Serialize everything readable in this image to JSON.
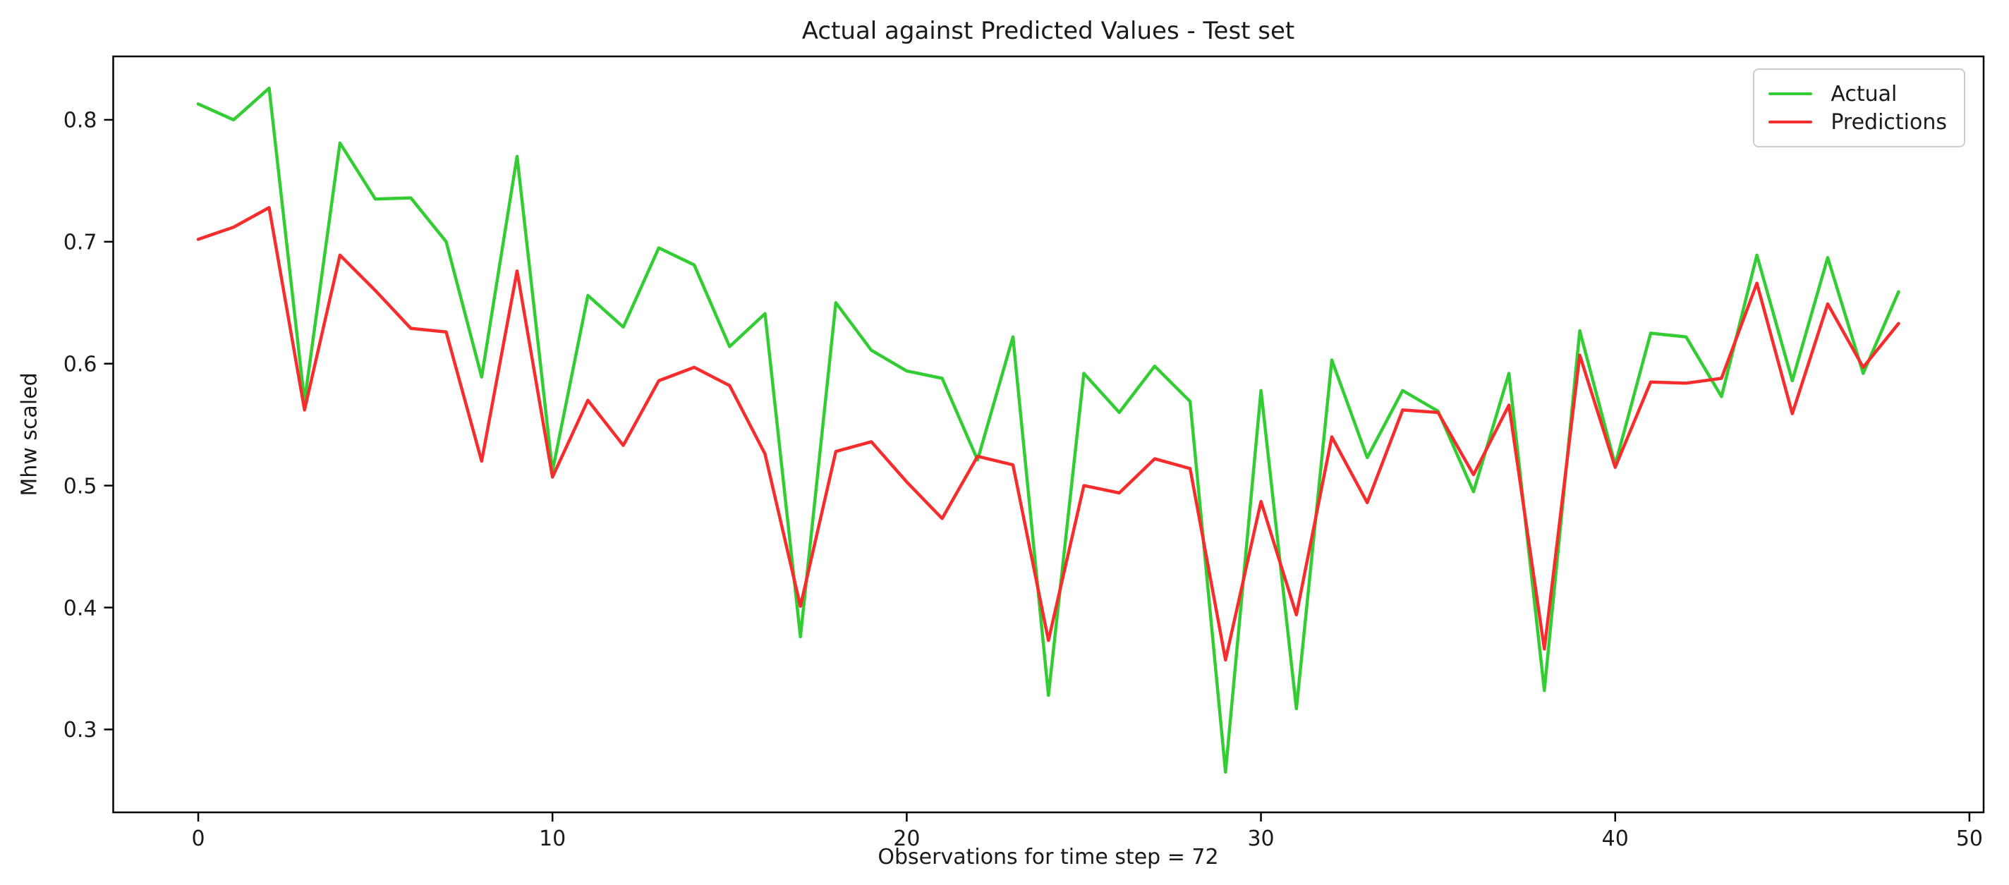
{
  "figure": {
    "title": "Actual against Predicted Values - Test set",
    "xlabel": "Observations for time step = 72",
    "ylabel": "Mhw scaled"
  },
  "legend": {
    "items": [
      {
        "label": "Actual",
        "color": "#32cd32"
      },
      {
        "label": "Predictions",
        "color": "#f72c2c"
      }
    ]
  },
  "chart_data": {
    "type": "line",
    "title": "Actual against Predicted Values - Test set",
    "xlabel": "Observations for time step = 72",
    "ylabel": "Mhw scaled",
    "grid": false,
    "legend_position": "upper right",
    "xlim": [
      -2.4,
      50.4
    ],
    "ylim": [
      0.232,
      0.852
    ],
    "x_ticks": [
      0,
      10,
      20,
      30,
      40,
      50
    ],
    "y_ticks": [
      0.3,
      0.4,
      0.5,
      0.6,
      0.7,
      0.8
    ],
    "x": [
      0,
      1,
      2,
      3,
      4,
      5,
      6,
      7,
      8,
      9,
      10,
      11,
      12,
      13,
      14,
      15,
      16,
      17,
      18,
      19,
      20,
      21,
      22,
      23,
      24,
      25,
      26,
      27,
      28,
      29,
      30,
      31,
      32,
      33,
      34,
      35,
      36,
      37,
      38,
      39,
      40,
      41,
      42,
      43,
      44,
      45,
      46,
      47,
      48
    ],
    "series": [
      {
        "name": "Actual",
        "color": "#32cd32",
        "values": [
          0.813,
          0.8,
          0.826,
          0.569,
          0.781,
          0.735,
          0.736,
          0.7,
          0.589,
          0.77,
          0.512,
          0.656,
          0.63,
          0.695,
          0.681,
          0.614,
          0.641,
          0.376,
          0.65,
          0.611,
          0.594,
          0.588,
          0.521,
          0.622,
          0.328,
          0.592,
          0.56,
          0.598,
          0.569,
          0.265,
          0.578,
          0.317,
          0.603,
          0.523,
          0.578,
          0.561,
          0.495,
          0.592,
          0.332,
          0.627,
          0.517,
          0.625,
          0.622,
          0.573,
          0.689,
          0.586,
          0.687,
          0.592,
          0.659
        ]
      },
      {
        "name": "Predictions",
        "color": "#f72c2c",
        "values": [
          0.702,
          0.712,
          0.728,
          0.562,
          0.689,
          0.66,
          0.629,
          0.626,
          0.52,
          0.676,
          0.507,
          0.57,
          0.533,
          0.586,
          0.597,
          0.582,
          0.526,
          0.401,
          0.528,
          0.536,
          0.503,
          0.473,
          0.524,
          0.517,
          0.373,
          0.5,
          0.494,
          0.522,
          0.514,
          0.357,
          0.487,
          0.394,
          0.54,
          0.486,
          0.562,
          0.56,
          0.509,
          0.566,
          0.366,
          0.607,
          0.515,
          0.585,
          0.584,
          0.588,
          0.666,
          0.559,
          0.649,
          0.597,
          0.633
        ]
      }
    ]
  }
}
